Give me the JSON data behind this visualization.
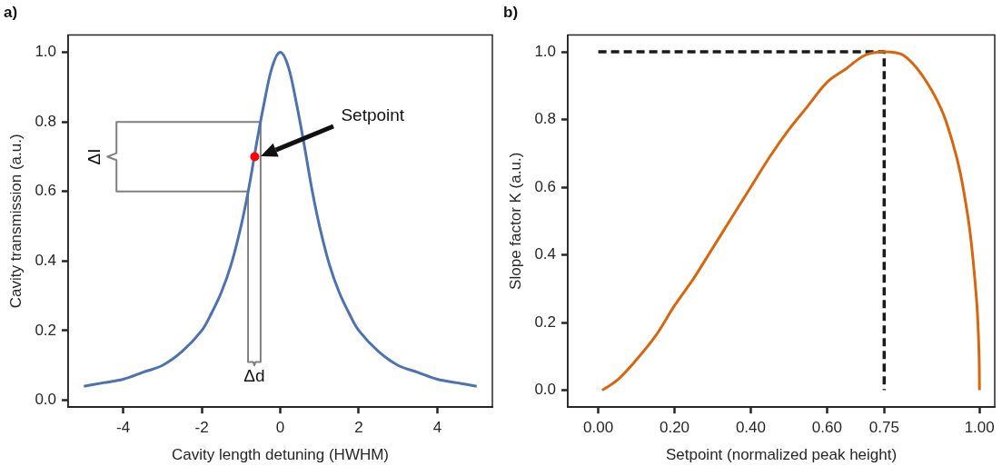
{
  "chart_data": [
    {
      "type": "line",
      "title": "a)",
      "xlabel": "Cavity length detuning (HWHM)",
      "ylabel": "Cavity transmission (a.u.)",
      "xlim": [
        -5.4,
        5.4
      ],
      "ylim": [
        -0.02,
        1.05
      ],
      "xticks": [
        -4,
        -2,
        0,
        2,
        4
      ],
      "yticks": [
        {
          "value": 0,
          "label": "0.0"
        },
        {
          "value": 0.2,
          "label": "0.2"
        },
        {
          "value": 0.4,
          "label": "0.4"
        },
        {
          "value": 0.6,
          "label": "0.6"
        },
        {
          "value": 0.8,
          "label": "0.8"
        },
        {
          "value": 1,
          "label": "1.0"
        }
      ],
      "grid": false,
      "legend": false,
      "marker": "none",
      "series": [
        {
          "type": "line",
          "color": "#4c72b0",
          "x": [
            -5,
            -4.5,
            -4,
            -3.5,
            -3,
            -2.5,
            -2,
            -1.75,
            -1.5,
            -1.25,
            -1,
            -0.8,
            -0.6,
            -0.4,
            -0.2,
            0,
            0.2,
            0.4,
            0.6,
            0.8,
            1,
            1.25,
            1.5,
            1.75,
            2,
            2.5,
            3,
            3.5,
            4,
            4.5,
            5
          ],
          "values": [
            0.04,
            0.05,
            0.06,
            0.08,
            0.1,
            0.14,
            0.2,
            0.25,
            0.31,
            0.39,
            0.5,
            0.61,
            0.74,
            0.86,
            0.96,
            1.0,
            0.96,
            0.86,
            0.74,
            0.61,
            0.5,
            0.39,
            0.31,
            0.25,
            0.2,
            0.14,
            0.1,
            0.08,
            0.06,
            0.05,
            0.04
          ]
        },
        {
          "type": "line",
          "color": "#808080",
          "x": [
            -0.5,
            -4.17,
            -4.17,
            -4.4,
            -4.17,
            -4.17,
            -0.82
          ],
          "values": [
            0.8,
            0.8,
            0.71,
            0.7,
            0.69,
            0.6,
            0.6
          ]
        },
        {
          "type": "line",
          "color": "#808080",
          "x": [
            -0.5,
            -0.5,
            -0.63,
            -0.66,
            -0.69,
            -0.82,
            -0.82
          ],
          "values": [
            0.8,
            0.11,
            0.11,
            0.1,
            0.11,
            0.11,
            0.6
          ]
        },
        {
          "type": "scatter",
          "color": "#ff0000",
          "marker": "circle",
          "x": [
            -0.65
          ],
          "values": [
            0.7
          ]
        }
      ],
      "annotations": [
        "Setpoint",
        {
          "text": "ΔI",
          "x": -4.4,
          "y": 0.7
        },
        {
          "text": "Δd",
          "x": -0.66,
          "y": 0.1
        }
      ]
    },
    {
      "type": "line",
      "title": "b)",
      "xlabel": "Setpoint (normalized peak height)",
      "ylabel": "Slope factor K (a.u.)",
      "xlim": [
        -0.08,
        1.04
      ],
      "ylim": [
        -0.05,
        1.05
      ],
      "xticks": [
        {
          "value": 0,
          "label": "0.00"
        },
        {
          "value": 0.2,
          "label": "0.20"
        },
        {
          "value": 0.4,
          "label": "0.40"
        },
        {
          "value": 0.6,
          "label": "0.60"
        },
        {
          "value": 0.75,
          "label": "0.75"
        },
        {
          "value": 1,
          "label": "1.00"
        }
      ],
      "yticks": [
        {
          "value": 0,
          "label": "0.0"
        },
        {
          "value": 0.2,
          "label": "0.2"
        },
        {
          "value": 0.4,
          "label": "0.4"
        },
        {
          "value": 0.6,
          "label": "0.6"
        },
        {
          "value": 0.8,
          "label": "0.8"
        },
        {
          "value": 1,
          "label": "1.0"
        }
      ],
      "grid": false,
      "legend": false,
      "marker": "none",
      "series": [
        {
          "type": "line",
          "color": "#d9650c",
          "x": [
            0.01,
            0.05,
            0.1,
            0.15,
            0.2,
            0.25,
            0.3,
            0.35,
            0.4,
            0.45,
            0.5,
            0.55,
            0.6,
            0.65,
            0.7,
            0.75,
            0.8,
            0.85,
            0.9,
            0.93,
            0.95,
            0.97,
            0.98,
            0.99,
            0.995,
            0.999,
            1.0
          ],
          "values": [
            0.0,
            0.03,
            0.09,
            0.16,
            0.25,
            0.33,
            0.42,
            0.51,
            0.6,
            0.69,
            0.77,
            0.84,
            0.91,
            0.95,
            0.99,
            1.0,
            0.99,
            0.93,
            0.83,
            0.73,
            0.64,
            0.51,
            0.42,
            0.3,
            0.22,
            0.1,
            0.0
          ]
        },
        {
          "type": "line",
          "color": "#1a1a1a",
          "line_style": "dashed",
          "x": [
            0,
            0.75,
            0.75
          ],
          "values": [
            1.0,
            1.0,
            0.0
          ]
        }
      ]
    }
  ]
}
